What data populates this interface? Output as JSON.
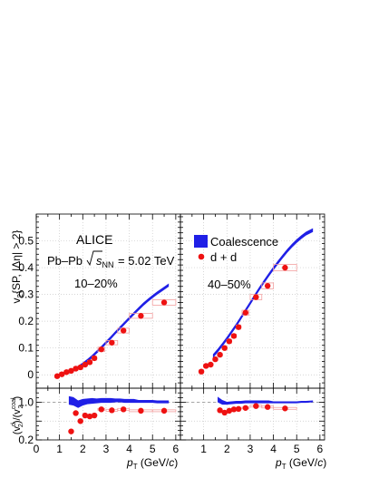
{
  "colors": {
    "model": "#1f1fe6",
    "data": "#ee1111",
    "syst_box": "#f3a0a0",
    "frame": "#000000",
    "grid": "#c8c8c8"
  },
  "annotations": {
    "experiment": "ALICE",
    "system_prefix": "Pb–Pb",
    "energy_rest": "= 5.02 TeV"
  },
  "chart_data": [
    {
      "type": "scatter",
      "panel": "top-left",
      "centrality": "10–20%",
      "ylabel": "v₂{SP, |Δη| > 2}",
      "xlim": [
        0,
        6.2
      ],
      "ylim": [
        -0.05,
        0.6
      ],
      "y_ticks": [
        0,
        0.1,
        0.2,
        0.3,
        0.4,
        0.5
      ],
      "series": [
        {
          "name": "d + d",
          "marker": "circle",
          "x": [
            0.9,
            1.1,
            1.3,
            1.5,
            1.7,
            1.9,
            2.1,
            2.3,
            2.5,
            2.8,
            3.25,
            3.75,
            4.5,
            5.5
          ],
          "y": [
            -0.005,
            0.002,
            0.01,
            0.015,
            0.023,
            0.028,
            0.038,
            0.047,
            0.062,
            0.095,
            0.12,
            0.165,
            0.22,
            0.27
          ],
          "syst_halfwidth": [
            0.1,
            0.1,
            0.1,
            0.1,
            0.1,
            0.1,
            0.1,
            0.1,
            0.1,
            0.15,
            0.25,
            0.25,
            0.5,
            0.5
          ],
          "syst_halfheight": [
            0.006,
            0.006,
            0.006,
            0.006,
            0.006,
            0.006,
            0.006,
            0.006,
            0.007,
            0.008,
            0.008,
            0.009,
            0.009,
            0.01
          ]
        },
        {
          "name": "Coalescence",
          "marker": "band",
          "x": [
            1.4,
            1.6,
            1.8,
            2.0,
            2.2,
            2.4,
            2.6,
            2.8,
            3.0,
            3.2,
            3.4,
            3.6,
            3.8,
            4.0,
            4.2,
            4.4,
            4.6,
            4.8,
            5.0,
            5.2,
            5.4,
            5.7
          ],
          "y": [
            0.01,
            0.018,
            0.028,
            0.04,
            0.053,
            0.068,
            0.085,
            0.102,
            0.12,
            0.138,
            0.157,
            0.175,
            0.193,
            0.211,
            0.229,
            0.246,
            0.263,
            0.278,
            0.292,
            0.305,
            0.317,
            0.335
          ],
          "band_halfwidth": 0.006
        }
      ]
    },
    {
      "type": "scatter",
      "panel": "top-right",
      "centrality": "40–50%",
      "xlim": [
        0,
        6.2
      ],
      "ylim": [
        -0.05,
        0.6
      ],
      "series": [
        {
          "name": "d + d",
          "marker": "circle",
          "x": [
            0.9,
            1.1,
            1.3,
            1.5,
            1.7,
            1.9,
            2.1,
            2.3,
            2.5,
            2.8,
            3.25,
            3.75,
            4.5
          ],
          "y": [
            0.012,
            0.033,
            0.038,
            0.058,
            0.075,
            0.1,
            0.125,
            0.145,
            0.178,
            0.232,
            0.29,
            0.332,
            0.4
          ],
          "syst_halfwidth": [
            0.1,
            0.1,
            0.1,
            0.1,
            0.1,
            0.1,
            0.1,
            0.1,
            0.1,
            0.15,
            0.25,
            0.25,
            0.5
          ],
          "syst_halfheight": [
            0.006,
            0.006,
            0.006,
            0.006,
            0.006,
            0.006,
            0.007,
            0.007,
            0.008,
            0.009,
            0.01,
            0.011,
            0.012
          ]
        },
        {
          "name": "Coalescence",
          "marker": "band",
          "x": [
            1.4,
            1.6,
            1.8,
            2.0,
            2.2,
            2.4,
            2.6,
            2.8,
            3.0,
            3.2,
            3.4,
            3.6,
            3.8,
            4.0,
            4.2,
            4.4,
            4.6,
            4.8,
            5.0,
            5.2,
            5.4,
            5.7
          ],
          "y": [
            0.07,
            0.09,
            0.112,
            0.135,
            0.16,
            0.185,
            0.212,
            0.24,
            0.267,
            0.295,
            0.322,
            0.348,
            0.373,
            0.397,
            0.42,
            0.442,
            0.463,
            0.482,
            0.499,
            0.514,
            0.527,
            0.54
          ],
          "band_halfwidth": 0.007
        }
      ]
    },
    {
      "type": "scatter",
      "panel": "bottom-left",
      "xlabel": "p_T (GeV/c)",
      "ylabel": "(v₂^d)/(v₂^coal)",
      "xlim": [
        0,
        6.2
      ],
      "ylim": [
        0.2,
        1.3
      ],
      "y_ticks": [
        0.2,
        0.6,
        1.0
      ],
      "y_tick_labels": [
        "0.2",
        "",
        "1.0"
      ],
      "x_ticks": [
        0,
        1,
        2,
        3,
        4,
        5,
        6
      ],
      "reference_line": 1.0,
      "series": [
        {
          "name": "d + d",
          "marker": "circle",
          "x": [
            1.5,
            1.7,
            1.9,
            2.1,
            2.3,
            2.5,
            2.8,
            3.25,
            3.75,
            4.5,
            5.5
          ],
          "y": [
            0.38,
            0.77,
            0.6,
            0.72,
            0.7,
            0.72,
            0.85,
            0.83,
            0.85,
            0.82,
            0.82
          ],
          "syst_halfwidth": [
            0.1,
            0.1,
            0.1,
            0.1,
            0.1,
            0.1,
            0.15,
            0.25,
            0.25,
            0.5,
            0.5
          ],
          "syst_halfheight": [
            0.02,
            0.02,
            0.02,
            0.02,
            0.02,
            0.02,
            0.02,
            0.02,
            0.02,
            0.02,
            0.02
          ]
        },
        {
          "name": "Coalescence",
          "marker": "band",
          "x": [
            1.4,
            1.6,
            1.8,
            2.0,
            2.2,
            2.4,
            2.6,
            2.8,
            3.0,
            3.2,
            3.4,
            3.6,
            3.8,
            4.0,
            4.2,
            4.4,
            4.6,
            4.8,
            5.0,
            5.2,
            5.4,
            5.7
          ],
          "y": [
            1.04,
            1.02,
            0.96,
            1.0,
            1.02,
            1.03,
            1.03,
            1.04,
            1.04,
            1.04,
            1.04,
            1.04,
            1.03,
            1.03,
            1.03,
            1.02,
            1.02,
            1.02,
            1.02,
            1.01,
            1.01,
            1.01
          ],
          "band_halfheight": [
            0.09,
            0.09,
            0.08,
            0.07,
            0.06,
            0.06,
            0.05,
            0.05,
            0.05,
            0.05,
            0.04,
            0.04,
            0.04,
            0.04,
            0.04,
            0.03,
            0.03,
            0.03,
            0.03,
            0.03,
            0.03,
            0.03
          ]
        }
      ]
    },
    {
      "type": "scatter",
      "panel": "bottom-right",
      "xlabel": "p_T (GeV/c)",
      "xlim": [
        0,
        6.2
      ],
      "ylim": [
        0.2,
        1.3
      ],
      "x_ticks": [
        1,
        2,
        3,
        4,
        5,
        6
      ],
      "reference_line": 1.0,
      "series": [
        {
          "name": "d + d",
          "marker": "circle",
          "x": [
            1.7,
            1.9,
            2.1,
            2.3,
            2.5,
            2.8,
            3.25,
            3.75,
            4.5
          ],
          "y": [
            0.83,
            0.78,
            0.82,
            0.85,
            0.86,
            0.88,
            0.92,
            0.9,
            0.87
          ],
          "syst_halfwidth": [
            0.1,
            0.1,
            0.1,
            0.1,
            0.1,
            0.15,
            0.25,
            0.25,
            0.5
          ],
          "syst_halfheight": [
            0.02,
            0.02,
            0.02,
            0.02,
            0.02,
            0.02,
            0.02,
            0.02,
            0.02
          ]
        },
        {
          "name": "Coalescence",
          "marker": "band",
          "x": [
            1.6,
            1.8,
            2.0,
            2.2,
            2.4,
            2.6,
            2.8,
            3.0,
            3.2,
            3.4,
            3.6,
            3.8,
            4.0,
            4.2,
            4.4,
            4.6,
            4.8,
            5.0,
            5.2,
            5.4,
            5.7
          ],
          "y": [
            1.06,
            1.0,
            0.98,
            0.99,
            1.0,
            1.0,
            1.01,
            1.01,
            1.01,
            1.01,
            1.01,
            1.01,
            1.0,
            1.0,
            1.0,
            1.0,
            1.0,
            1.0,
            1.01,
            1.01,
            1.02
          ],
          "band_halfheight": [
            0.06,
            0.05,
            0.03,
            0.03,
            0.03,
            0.03,
            0.03,
            0.03,
            0.03,
            0.03,
            0.03,
            0.03,
            0.02,
            0.02,
            0.02,
            0.02,
            0.02,
            0.02,
            0.02,
            0.02,
            0.02
          ]
        }
      ]
    }
  ]
}
